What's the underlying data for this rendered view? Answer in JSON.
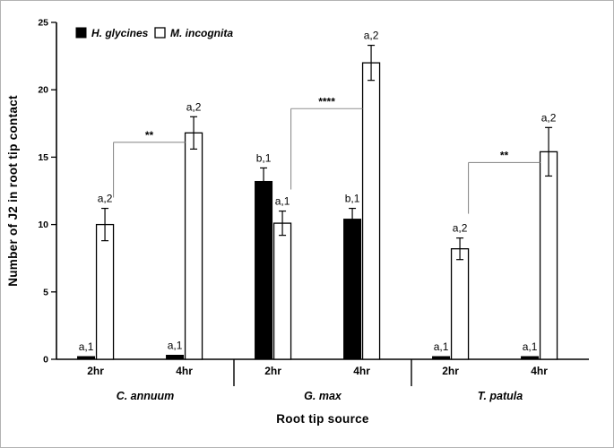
{
  "window": {
    "background": "#ffffff",
    "border_color": "#b3b3b3"
  },
  "chart_data": {
    "type": "bar",
    "title": "",
    "ylabel": "Number of J2 in root tip contact",
    "xlabel": "Root tip source",
    "ylim": [
      0,
      25
    ],
    "yticks": [
      0,
      5,
      10,
      15,
      20,
      25
    ],
    "grid": false,
    "legend_position": "top-left",
    "legend": [
      {
        "label": "H. glycines",
        "swatch": "filled-black"
      },
      {
        "label": "M. incognita",
        "swatch": "open-white"
      }
    ],
    "groups": [
      {
        "name": "C. annuum",
        "clusters": [
          {
            "time": "2hr",
            "bars": [
              {
                "series": "H. glycines",
                "value": 0.2,
                "error": 0,
                "label": "a,1"
              },
              {
                "series": "M. incognita",
                "value": 10.0,
                "error": 1.2,
                "label": "a,2"
              }
            ]
          },
          {
            "time": "4hr",
            "bars": [
              {
                "series": "H. glycines",
                "value": 0.3,
                "error": 0,
                "label": "a,1"
              },
              {
                "series": "M. incognita",
                "value": 16.8,
                "error": 1.2,
                "label": "a,2"
              }
            ]
          }
        ],
        "bracket": {
          "label": "**",
          "y": 16.1,
          "from": 0,
          "to": 1,
          "leg_to": 12.0
        }
      },
      {
        "name": "G. max",
        "clusters": [
          {
            "time": "2hr",
            "bars": [
              {
                "series": "H. glycines",
                "value": 13.2,
                "error": 1.0,
                "label": "b,1"
              },
              {
                "series": "M. incognita",
                "value": 10.1,
                "error": 0.9,
                "label": "a,1"
              }
            ]
          },
          {
            "time": "4hr",
            "bars": [
              {
                "series": "H. glycines",
                "value": 10.4,
                "error": 0.8,
                "label": "b,1"
              },
              {
                "series": "M. incognita",
                "value": 22.0,
                "error": 1.3,
                "label": "a,2"
              }
            ]
          }
        ],
        "bracket": {
          "label": "****",
          "y": 18.6,
          "from": 0,
          "to": 1,
          "leg_to": 12.6
        }
      },
      {
        "name": "T. patula",
        "clusters": [
          {
            "time": "2hr",
            "bars": [
              {
                "series": "H. glycines",
                "value": 0.2,
                "error": 0,
                "label": "a,1"
              },
              {
                "series": "M. incognita",
                "value": 8.2,
                "error": 0.8,
                "label": "a,2"
              }
            ]
          },
          {
            "time": "4hr",
            "bars": [
              {
                "series": "H. glycines",
                "value": 0.2,
                "error": 0,
                "label": "a,1"
              },
              {
                "series": "M. incognita",
                "value": 15.4,
                "error": 1.8,
                "label": "a,2"
              }
            ]
          }
        ],
        "bracket": {
          "label": "**",
          "y": 14.6,
          "from": 0,
          "to": 1,
          "leg_to": 10.8
        }
      }
    ],
    "colors": {
      "hglycines_fill": "#000000",
      "mincognita_fill": "#ffffff",
      "bar_stroke": "#000000",
      "bracket": "#8f8f8f"
    }
  }
}
